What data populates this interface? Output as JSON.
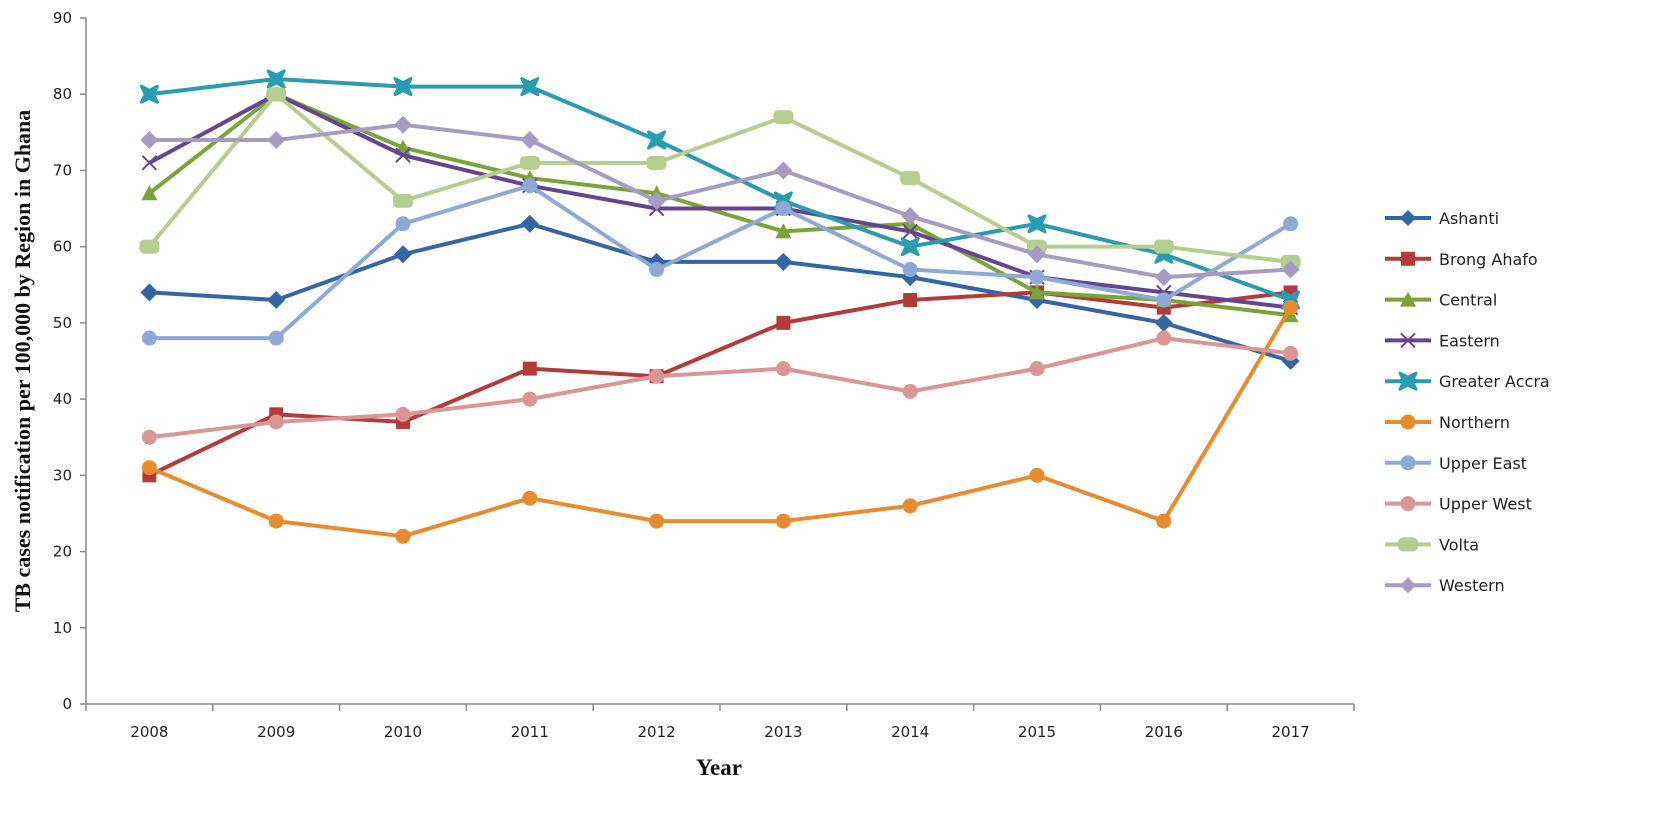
{
  "chart_data": {
    "type": "line",
    "title": "",
    "xlabel": "Year",
    "ylabel": "TB cases notification per 100,000 by Region in Ghana",
    "x": [
      "2008",
      "2009",
      "2010",
      "2011",
      "2012",
      "2013",
      "2014",
      "2015",
      "2016",
      "2017"
    ],
    "ylim": [
      0,
      90
    ],
    "yticks": [
      0,
      10,
      20,
      30,
      40,
      50,
      60,
      70,
      80,
      90
    ],
    "grid": false,
    "legend_position": "right",
    "series": [
      {
        "name": "Ashanti",
        "color": "#3465a4",
        "marker": "diamond",
        "values": [
          54,
          53,
          59,
          63,
          58,
          58,
          56,
          53,
          50,
          45
        ]
      },
      {
        "name": "Brong Ahafo",
        "color": "#b13c3a",
        "marker": "square",
        "values": [
          30,
          38,
          37,
          44,
          43,
          50,
          53,
          54,
          52,
          54
        ]
      },
      {
        "name": "Central",
        "color": "#7aa43a",
        "marker": "triangle",
        "values": [
          67,
          80,
          73,
          69,
          67,
          62,
          63,
          54,
          53,
          51
        ]
      },
      {
        "name": "Eastern",
        "color": "#65468e",
        "marker": "x",
        "values": [
          71,
          80,
          72,
          68,
          65,
          65,
          62,
          56,
          54,
          52
        ]
      },
      {
        "name": "Greater Accra",
        "color": "#2a9bb0",
        "marker": "star",
        "values": [
          80,
          82,
          81,
          81,
          74,
          66,
          60,
          63,
          59,
          53
        ]
      },
      {
        "name": "Northern",
        "color": "#e88a2e",
        "marker": "circle",
        "values": [
          31,
          24,
          22,
          27,
          24,
          24,
          26,
          30,
          24,
          52
        ]
      },
      {
        "name": "Upper East",
        "color": "#8ea9d6",
        "marker": "circle",
        "values": [
          48,
          48,
          63,
          68,
          57,
          65,
          57,
          56,
          53,
          63
        ]
      },
      {
        "name": "Upper West",
        "color": "#d99694",
        "marker": "circle",
        "values": [
          35,
          37,
          38,
          40,
          43,
          44,
          41,
          44,
          48,
          46
        ]
      },
      {
        "name": "Volta",
        "color": "#b5cd8f",
        "marker": "rounded-rect",
        "values": [
          60,
          80,
          66,
          71,
          71,
          77,
          69,
          60,
          60,
          58
        ]
      },
      {
        "name": "Western",
        "color": "#a79bc4",
        "marker": "diamond",
        "values": [
          74,
          74,
          76,
          74,
          66,
          70,
          64,
          59,
          56,
          57
        ]
      }
    ]
  }
}
